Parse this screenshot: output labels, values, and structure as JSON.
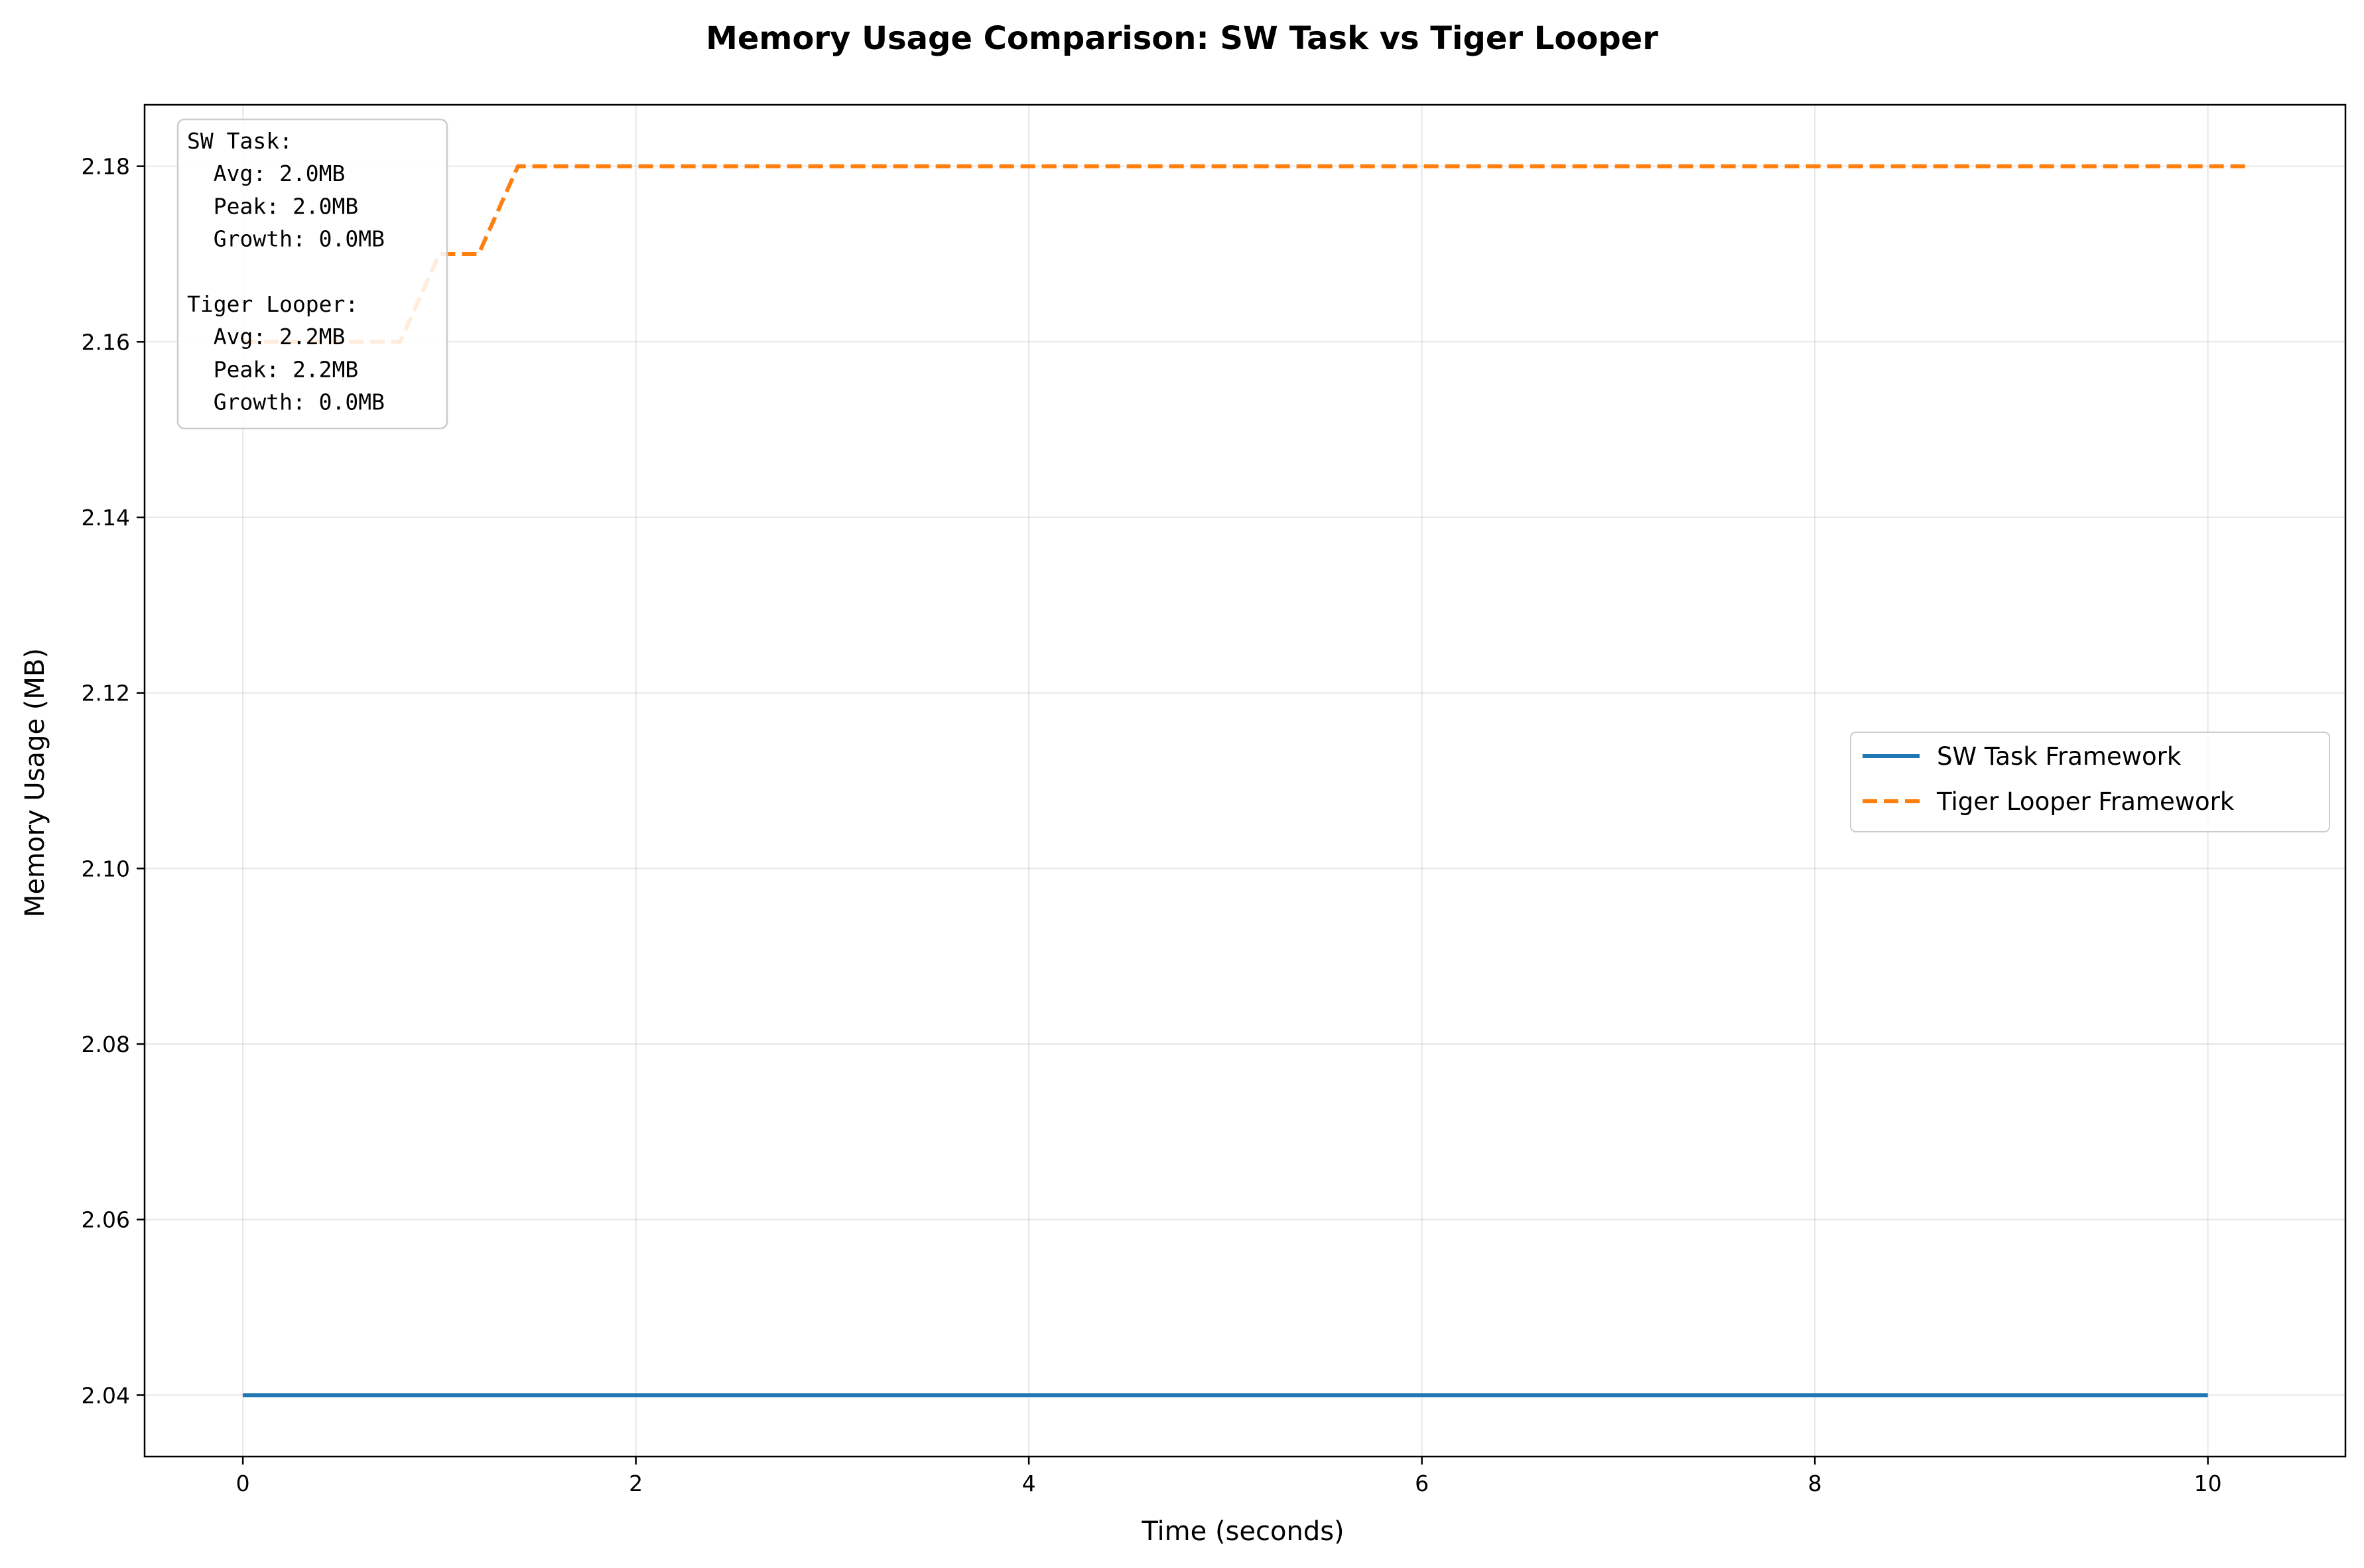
{
  "chart_data": {
    "type": "line",
    "title": "Memory Usage Comparison: SW Task vs Tiger Looper",
    "xlabel": "Time (seconds)",
    "ylabel": "Memory Usage (MB)",
    "xlim": [
      -0.5,
      10.7
    ],
    "ylim": [
      2.033,
      2.187
    ],
    "xticks": [
      0,
      2,
      4,
      6,
      8,
      10
    ],
    "yticks": [
      2.04,
      2.06,
      2.08,
      2.1,
      2.12,
      2.14,
      2.16,
      2.18
    ],
    "xtick_labels": [
      "0",
      "2",
      "4",
      "6",
      "8",
      "10"
    ],
    "ytick_labels": [
      "2.04",
      "2.06",
      "2.08",
      "2.10",
      "2.12",
      "2.14",
      "2.16",
      "2.18"
    ],
    "grid": true,
    "legend_position": "center-right",
    "series": [
      {
        "name": "SW Task Framework",
        "color": "#1f77b4",
        "style": "solid",
        "x": [
          0,
          10
        ],
        "y": [
          2.04,
          2.04
        ]
      },
      {
        "name": "Tiger Looper Framework",
        "color": "#ff7f0e",
        "style": "dashed",
        "x": [
          0,
          0.8,
          1.0,
          1.2,
          1.4,
          10.2
        ],
        "y": [
          2.16,
          2.16,
          2.17,
          2.17,
          2.18,
          2.18
        ]
      }
    ],
    "annotation": {
      "position": "top-left",
      "lines": [
        "SW Task:",
        "  Avg: 2.0MB",
        "  Peak: 2.0MB",
        "  Growth: 0.0MB",
        "",
        "Tiger Looper:",
        "  Avg: 2.2MB",
        "  Peak: 2.2MB",
        "  Growth: 0.0MB"
      ]
    }
  }
}
